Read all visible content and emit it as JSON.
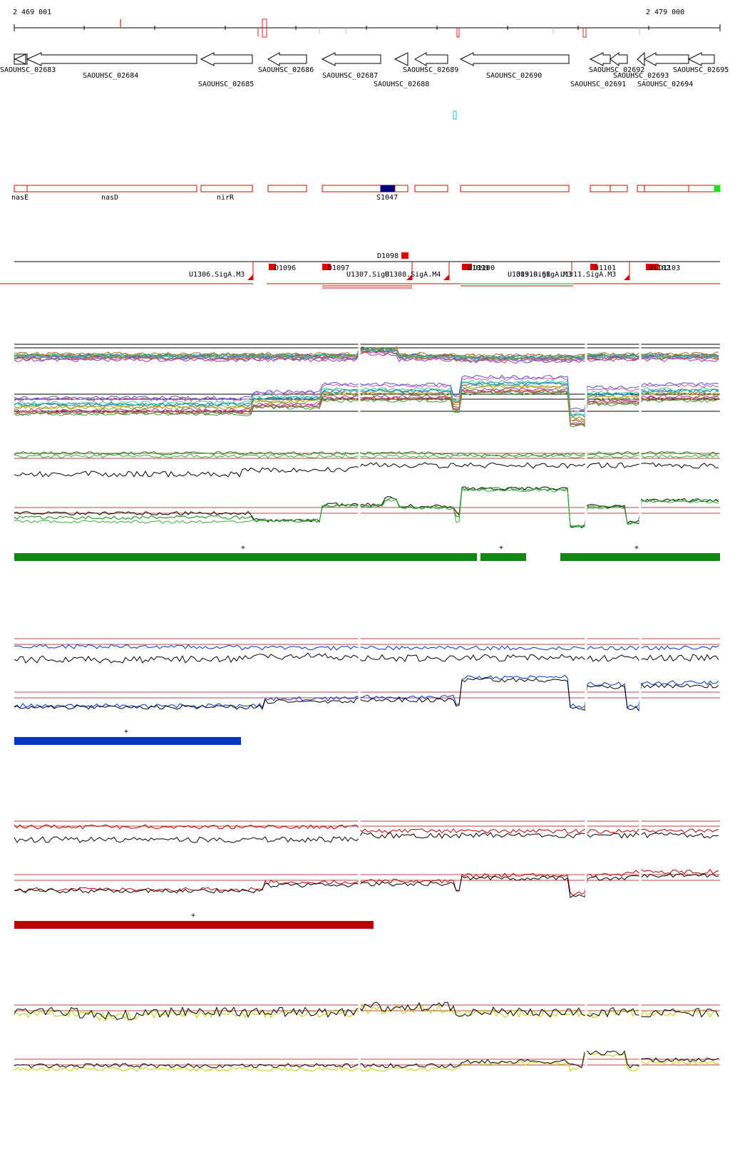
{
  "ruler": {
    "start_label": "2 469 001",
    "end_label": "2 479 000"
  },
  "genes": [
    {
      "name": "SAOUHSC_02683",
      "strand": "-"
    },
    {
      "name": "SAOUHSC_02684",
      "strand": "-"
    },
    {
      "name": "SAOUHSC_02685",
      "strand": "-"
    },
    {
      "name": "SAOUHSC_02686",
      "strand": "-"
    },
    {
      "name": "SAOUHSC_02687",
      "strand": "-"
    },
    {
      "name": "SAOUHSC_02688",
      "strand": "-"
    },
    {
      "name": "SAOUHSC_02689",
      "strand": "-"
    },
    {
      "name": "SAOUHSC_02690",
      "strand": "-"
    },
    {
      "name": "SAOUHSC_02691",
      "strand": "-"
    },
    {
      "name": "SAOUHSC_02692",
      "strand": "-"
    },
    {
      "name": "SAOUHSC_02693",
      "strand": "-"
    },
    {
      "name": "SAOUHSC_02694",
      "strand": "-"
    },
    {
      "name": "SAOUHSC_02695",
      "strand": "-"
    }
  ],
  "gene_names": [
    "nasE",
    "nasD",
    "nirR",
    "S1047"
  ],
  "features": [
    "D1098",
    "U1306.SigA.M3",
    "D1096",
    "D1097",
    "U1307.SigB",
    "U1308.SigA.M4",
    "D1099",
    "D1100",
    "U1309.SigB",
    "U1310.SigA.M3",
    "U1311.SigA.M3",
    "D1101",
    "D1102",
    "D1103"
  ],
  "condition_markers": [
    "+",
    "+",
    "+",
    "+",
    "+"
  ],
  "colors": {
    "gene_outline": "#000000",
    "annotation_box": "#dd0000",
    "selected_feature": "#00007f",
    "green_track": "#118811",
    "blue_track": "#0033cc",
    "red_track": "#bb0000",
    "yellow_track": "#cccc00",
    "highlight_box": "#00cccc",
    "end_marker": "#22dd22"
  }
}
